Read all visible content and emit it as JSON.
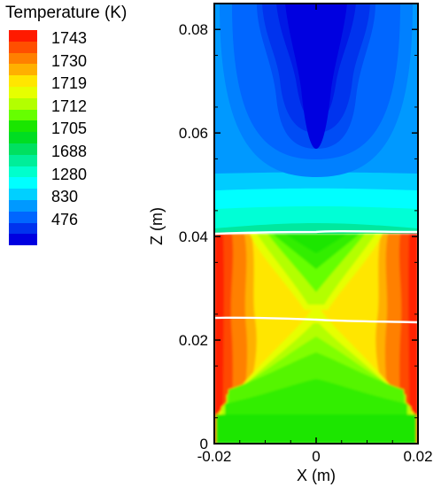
{
  "chart_data": {
    "type": "heatmap",
    "title": "",
    "xlabel": "X (m)",
    "ylabel": "Z (m)",
    "xlim": [
      -0.02,
      0.02
    ],
    "ylim": [
      0,
      0.085
    ],
    "x_ticks": [
      "-0.02",
      "0",
      "0.02"
    ],
    "x_tick_values": [
      -0.02,
      0,
      0.02
    ],
    "y_ticks": [
      "0",
      "0.02",
      "0.04",
      "0.06",
      "0.08"
    ],
    "y_tick_values": [
      0,
      0.02,
      0.04,
      0.06,
      0.08
    ],
    "colorbar": {
      "title": "Temperature (K)",
      "labels": [
        "1743",
        "1730",
        "1719",
        "1712",
        "1705",
        "1688",
        "1280",
        "830",
        "476"
      ],
      "colors": [
        "#ff1a00",
        "#ff4f00",
        "#ff8000",
        "#ffb000",
        "#ffe600",
        "#e6ff00",
        "#b3ff00",
        "#66ff00",
        "#1ae600",
        "#00dd22",
        "#00e060",
        "#00ee99",
        "#00ffcc",
        "#00ffff",
        "#00d0ff",
        "#0099ff",
        "#0066ff",
        "#0033ee",
        "#0000e0"
      ]
    },
    "interfaces_z": [
      0.041,
      0.024
    ]
  }
}
